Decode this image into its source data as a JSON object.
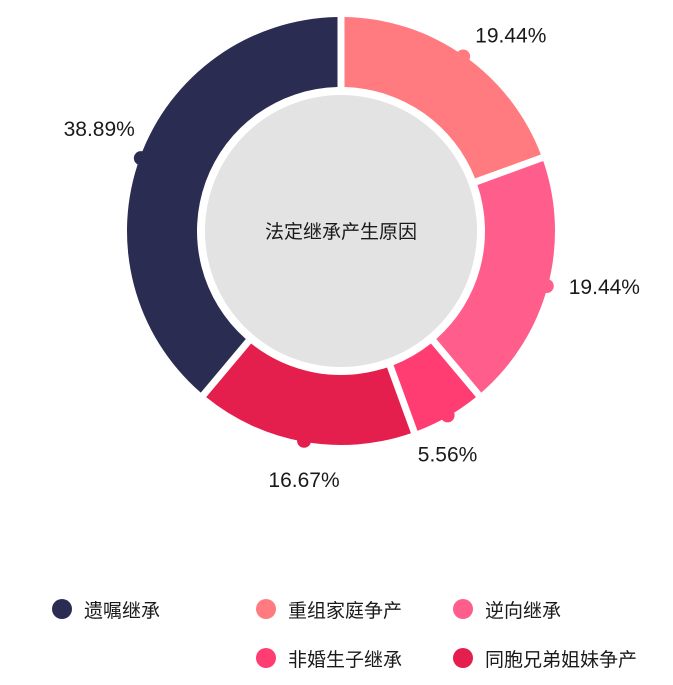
{
  "chart_data": {
    "type": "donut",
    "center_label": "法定继承产生原因",
    "series": [
      {
        "name": "遗嘱继承",
        "value": 38.89,
        "label": "38.89%",
        "color": "#2a2c52"
      },
      {
        "name": "重组家庭争产",
        "value": 19.44,
        "label": "19.44%",
        "color": "#ff7b80"
      },
      {
        "name": "逆向继承",
        "value": 19.44,
        "label": "19.44%",
        "color": "#ff5e8c"
      },
      {
        "name": "非婚生子继承",
        "value": 5.56,
        "label": "5.56%",
        "color": "#ff3d72"
      },
      {
        "name": "同胞兄弟姐妹争产",
        "value": 16.67,
        "label": "16.67%",
        "color": "#e51f4d"
      }
    ],
    "legend_position": "bottom"
  }
}
